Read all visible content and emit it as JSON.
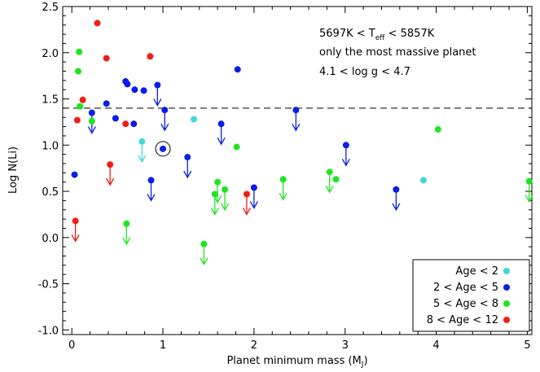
{
  "chart_data": {
    "type": "scatter",
    "xlabel": "Planet minimum mass (M_J)",
    "xlabel_main": "Planet minimum mass (M",
    "xlabel_sub": "J",
    "xlabel_close": ")",
    "ylabel": "Log N(Li)",
    "xlim": [
      -0.1,
      5.05
    ],
    "ylim": [
      -1.05,
      2.5
    ],
    "x_ticks": [
      0,
      1,
      2,
      3,
      4,
      5
    ],
    "y_ticks": [
      -1.0,
      -0.5,
      0.0,
      0.5,
      1.0,
      1.5,
      2.0,
      2.5
    ],
    "reference_line": 1.4,
    "annotations": [
      {
        "main": "5697K < T",
        "sub": "eff",
        "tail": " < 5857K"
      },
      {
        "main": "only the most massive planet",
        "sub": "",
        "tail": ""
      },
      {
        "main": "4.1 < log g < 4.7",
        "sub": "",
        "tail": ""
      }
    ],
    "sun": {
      "x": 1.0,
      "y": 0.96
    },
    "legend_position": "bottom-right",
    "series": [
      {
        "name": "Age < 2",
        "color": "#40d8d8",
        "points": [
          {
            "x": 0.77,
            "y": 1.04,
            "limit": true
          },
          {
            "x": 1.34,
            "y": 1.28,
            "limit": false
          },
          {
            "x": 3.86,
            "y": 0.62,
            "limit": false
          }
        ]
      },
      {
        "name": "2 < Age < 5",
        "color": "#0a1ee6",
        "points": [
          {
            "x": 0.03,
            "y": 0.68,
            "limit": false
          },
          {
            "x": 0.22,
            "y": 1.35,
            "limit": true
          },
          {
            "x": 0.38,
            "y": 1.45,
            "limit": false
          },
          {
            "x": 0.48,
            "y": 1.29,
            "limit": false
          },
          {
            "x": 0.59,
            "y": 1.69,
            "limit": false
          },
          {
            "x": 0.61,
            "y": 1.66,
            "limit": false
          },
          {
            "x": 0.68,
            "y": 1.23,
            "limit": false
          },
          {
            "x": 0.69,
            "y": 1.6,
            "limit": false
          },
          {
            "x": 0.79,
            "y": 1.59,
            "limit": false
          },
          {
            "x": 0.87,
            "y": 0.62,
            "limit": true
          },
          {
            "x": 0.94,
            "y": 1.65,
            "limit": true
          },
          {
            "x": 1.02,
            "y": 1.38,
            "limit": true
          },
          {
            "x": 1.27,
            "y": 0.87,
            "limit": true
          },
          {
            "x": 1.64,
            "y": 1.23,
            "limit": true
          },
          {
            "x": 1.82,
            "y": 1.82,
            "limit": false
          },
          {
            "x": 2.0,
            "y": 0.54,
            "limit": true
          },
          {
            "x": 2.46,
            "y": 1.38,
            "limit": true
          },
          {
            "x": 3.01,
            "y": 1.0,
            "limit": true
          },
          {
            "x": 3.56,
            "y": 0.52,
            "limit": true
          }
        ]
      },
      {
        "name": "5 < Age < 8",
        "color": "#1ee61e",
        "points": [
          {
            "x": 0.07,
            "y": 1.8,
            "limit": false
          },
          {
            "x": 0.08,
            "y": 2.01,
            "limit": false
          },
          {
            "x": 0.09,
            "y": 1.42,
            "limit": false
          },
          {
            "x": 0.22,
            "y": 1.26,
            "limit": false
          },
          {
            "x": 0.6,
            "y": 0.15,
            "limit": true
          },
          {
            "x": 1.45,
            "y": -0.07,
            "limit": true
          },
          {
            "x": 1.57,
            "y": 0.47,
            "limit": true
          },
          {
            "x": 1.6,
            "y": 0.6,
            "limit": true
          },
          {
            "x": 1.68,
            "y": 0.52,
            "limit": true
          },
          {
            "x": 1.81,
            "y": 0.98,
            "limit": false
          },
          {
            "x": 2.32,
            "y": 0.63,
            "limit": true
          },
          {
            "x": 2.83,
            "y": 0.71,
            "limit": true
          },
          {
            "x": 2.9,
            "y": 0.63,
            "limit": false
          },
          {
            "x": 4.02,
            "y": 1.17,
            "limit": false
          },
          {
            "x": 5.02,
            "y": 0.61,
            "limit": true
          }
        ]
      },
      {
        "name": "8 < Age < 12",
        "color": "#f01e14",
        "points": [
          {
            "x": 0.04,
            "y": 0.18,
            "limit": true
          },
          {
            "x": 0.06,
            "y": 1.27,
            "limit": false
          },
          {
            "x": 0.12,
            "y": 1.49,
            "limit": false
          },
          {
            "x": 0.28,
            "y": 2.32,
            "limit": false
          },
          {
            "x": 0.38,
            "y": 1.94,
            "limit": false
          },
          {
            "x": 0.42,
            "y": 0.79,
            "limit": true
          },
          {
            "x": 0.59,
            "y": 1.23,
            "limit": false
          },
          {
            "x": 0.86,
            "y": 1.96,
            "limit": false
          },
          {
            "x": 1.92,
            "y": 0.47,
            "limit": true
          }
        ]
      }
    ]
  }
}
